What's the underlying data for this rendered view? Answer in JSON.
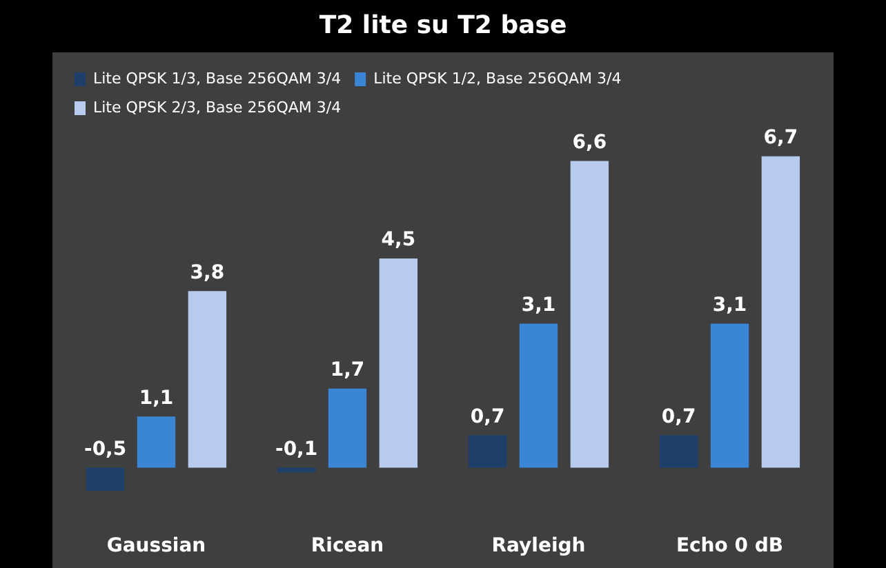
{
  "chart_data": {
    "type": "bar",
    "title": "T2 lite su T2 base",
    "categories": [
      "Gaussian",
      "Ricean",
      "Rayleigh",
      "Echo 0 dB"
    ],
    "series": [
      {
        "name": "Lite QPSK 1/3, Base 256QAM 3/4",
        "color": "#1f3f6b",
        "values": [
          -0.5,
          -0.1,
          0.7,
          0.7
        ],
        "value_labels": [
          "-0,5",
          "-0,1",
          "0,7",
          "0,7"
        ]
      },
      {
        "name": "Lite QPSK 1/2, Base 256QAM 3/4",
        "color": "#3a85d6",
        "values": [
          1.1,
          1.7,
          3.1,
          3.1
        ],
        "value_labels": [
          "1,1",
          "1,7",
          "3,1",
          "3,1"
        ]
      },
      {
        "name": "Lite QPSK 2/3, Base 256QAM 3/4",
        "color": "#b6cbee",
        "values": [
          3.8,
          4.5,
          6.6,
          6.7
        ],
        "value_labels": [
          "3,8",
          "4,5",
          "6,6",
          "6,7"
        ]
      }
    ],
    "legend": "top left",
    "grid": false
  }
}
